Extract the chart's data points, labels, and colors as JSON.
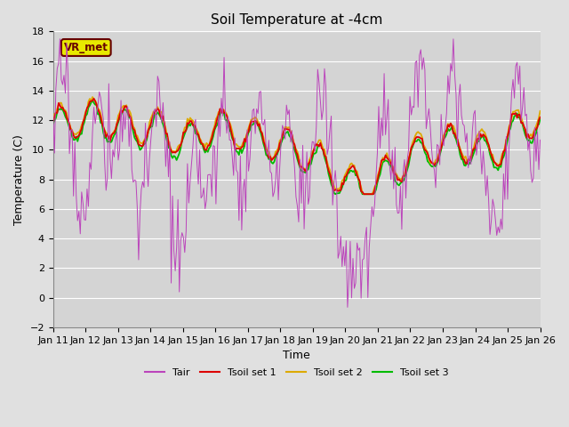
{
  "title": "Soil Temperature at -4cm",
  "xlabel": "Time",
  "ylabel": "Temperature (C)",
  "ylim": [
    -2,
    18
  ],
  "yticks": [
    -2,
    0,
    2,
    4,
    6,
    8,
    10,
    12,
    14,
    16,
    18
  ],
  "xtick_labels": [
    "Jan 11",
    "Jan 12",
    "Jan 13",
    "Jan 14",
    "Jan 15",
    "Jan 16",
    "Jan 17",
    "Jan 18",
    "Jan 19",
    "Jan 20",
    "Jan 21",
    "Jan 22",
    "Jan 23",
    "Jan 24",
    "Jan 25",
    "Jan 26"
  ],
  "label_box_text": "VR_met",
  "label_box_color": "#e8e800",
  "label_box_text_color": "#660000",
  "bg_color": "#e0e0e0",
  "plot_bg_color": "#d4d4d4",
  "grid_color": "#ffffff",
  "colors": {
    "Tair": "#bb44bb",
    "Tsoil1": "#dd0000",
    "Tsoil2": "#ddaa00",
    "Tsoil3": "#00bb00"
  },
  "legend_labels": [
    "Tair",
    "Tsoil set 1",
    "Tsoil set 2",
    "Tsoil set 3"
  ]
}
